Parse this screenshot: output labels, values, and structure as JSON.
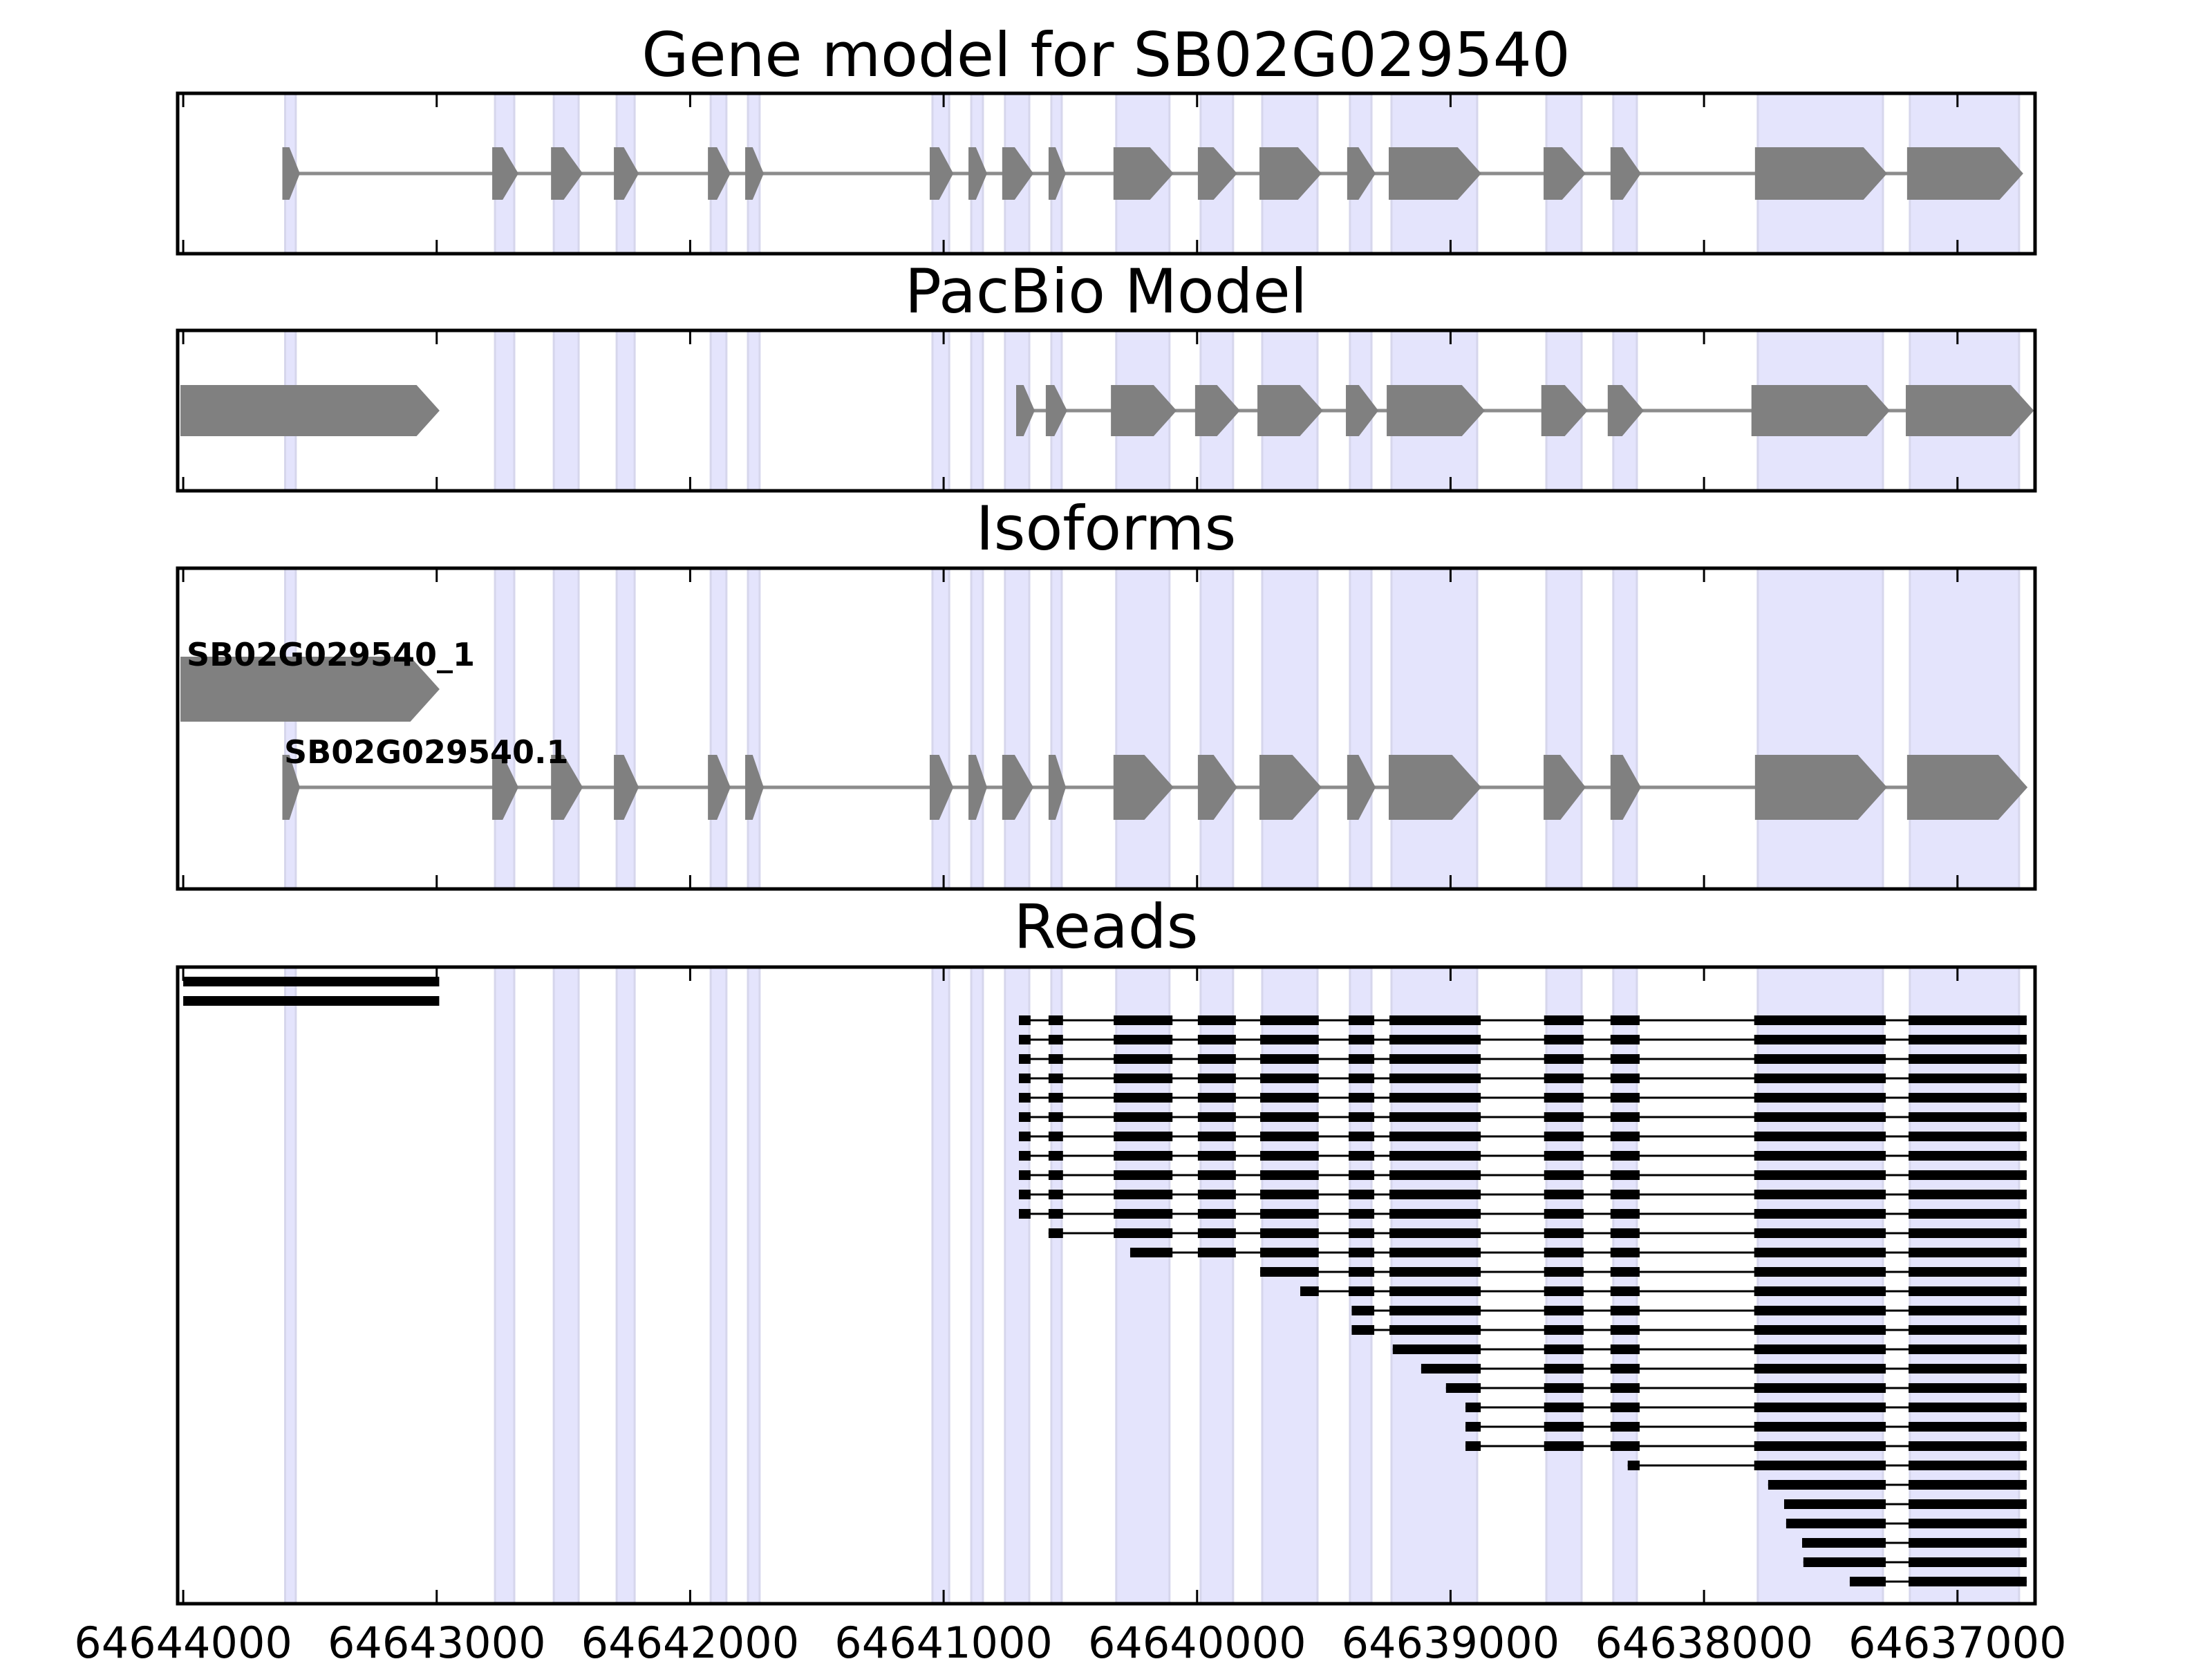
{
  "colors": {
    "band_fill": "#e4e4fc",
    "band_edge": "#d6d6ec",
    "exon_gray": "#808080",
    "intron_gray": "#8c8c8c",
    "read_black": "#000000",
    "frame": "#000000"
  },
  "chart_data": {
    "type": "gene-track",
    "x_axis": {
      "xlim": [
        64644022,
        64636694
      ],
      "reversed": true,
      "ticks": [
        64644000,
        64643000,
        64642000,
        64641000,
        64640000,
        64639000,
        64638000,
        64637000
      ],
      "tick_labels": [
        "64644000",
        "64643000",
        "64642000",
        "64641000",
        "64640000",
        "64639000",
        "64638000",
        "64637000"
      ]
    },
    "highlight_bands": [
      [
        64643598,
        64643556
      ],
      [
        64642770,
        64642694
      ],
      [
        64642538,
        64642440
      ],
      [
        64642290,
        64642219
      ],
      [
        64641919,
        64641857
      ],
      [
        64641772,
        64641726
      ],
      [
        64641044,
        64640978
      ],
      [
        64640891,
        64640845
      ],
      [
        64640758,
        64640662
      ],
      [
        64640575,
        64640534
      ],
      [
        64640319,
        64640109
      ],
      [
        64639986,
        64639858
      ],
      [
        64639743,
        64639525
      ],
      [
        64639397,
        64639312
      ],
      [
        64639233,
        64638895
      ],
      [
        64638622,
        64638483
      ],
      [
        64638358,
        64638265
      ],
      [
        64637788,
        64637294
      ],
      [
        64637188,
        64636757
      ]
    ],
    "panels": [
      {
        "id": "gene-model",
        "title": "Gene model for SB02G029540",
        "strand": "-",
        "models": [
          {
            "label": "",
            "exons": [
              [
                64643598,
                64643556
              ],
              [
                64642770,
                64642694
              ],
              [
                64642538,
                64642440
              ],
              [
                64642290,
                64642219
              ],
              [
                64641919,
                64641857
              ],
              [
                64641772,
                64641726
              ],
              [
                64641044,
                64640978
              ],
              [
                64640891,
                64640845
              ],
              [
                64640758,
                64640662
              ],
              [
                64640575,
                64640534
              ],
              [
                64640319,
                64640109
              ],
              [
                64639986,
                64639858
              ],
              [
                64639743,
                64639525
              ],
              [
                64639397,
                64639312
              ],
              [
                64639233,
                64638895
              ],
              [
                64638622,
                64638483
              ],
              [
                64638358,
                64638265
              ],
              [
                64637788,
                64637294
              ],
              [
                64637188,
                64636757
              ]
            ]
          }
        ]
      },
      {
        "id": "pacbio-model",
        "title": "PacBio Model",
        "strand": "-",
        "models": [
          {
            "label": "",
            "exons": [
              [
                64644000,
                64643005
              ]
            ]
          },
          {
            "label": "",
            "exons": [
              [
                64640703,
                64640657
              ],
              [
                64640586,
                64640529
              ],
              [
                64640329,
                64640097
              ],
              [
                64639997,
                64639847
              ],
              [
                64639751,
                64639520
              ],
              [
                64639402,
                64639301
              ],
              [
                64639241,
                64638881
              ],
              [
                64638631,
                64638475
              ],
              [
                64638369,
                64638254
              ],
              [
                64637802,
                64637283
              ],
              [
                64637193,
                64636715
              ]
            ]
          }
        ]
      },
      {
        "id": "isoforms",
        "title": "Isoforms",
        "strand": "-",
        "models": [
          {
            "label": "SB02G029540_1",
            "exons": [
              [
                64644000,
                64643005
              ]
            ]
          },
          {
            "label": "SB02G029540.1",
            "exons": [
              [
                64643598,
                64643556
              ],
              [
                64642770,
                64642694
              ],
              [
                64642538,
                64642440
              ],
              [
                64642290,
                64642219
              ],
              [
                64641919,
                64641857
              ],
              [
                64641772,
                64641726
              ],
              [
                64641044,
                64640978
              ],
              [
                64640891,
                64640845
              ],
              [
                64640758,
                64640662
              ],
              [
                64640575,
                64640534
              ],
              [
                64640319,
                64640109
              ],
              [
                64639986,
                64639858
              ],
              [
                64639743,
                64639525
              ],
              [
                64639397,
                64639312
              ],
              [
                64639233,
                64638895
              ],
              [
                64638622,
                64638483
              ],
              [
                64638358,
                64638265
              ],
              [
                64637788,
                64637294
              ],
              [
                64637188,
                64636740
              ]
            ]
          }
        ]
      },
      {
        "id": "reads",
        "title": "Reads",
        "read_exon_set": [
          [
            64640703,
            64640657
          ],
          [
            64640586,
            64640529
          ],
          [
            64640329,
            64640097
          ],
          [
            64639997,
            64639847
          ],
          [
            64639751,
            64639520
          ],
          [
            64639402,
            64639301
          ],
          [
            64639241,
            64638881
          ],
          [
            64638631,
            64638475
          ],
          [
            64638369,
            64638254
          ],
          [
            64637802,
            64637283
          ],
          [
            64637193,
            64636727
          ]
        ],
        "reads": [
          {
            "first": [
              64644000,
              64642990
            ],
            "from": 11
          },
          {
            "first": [
              64644000,
              64642990
            ],
            "from": 11
          },
          {
            "first": null,
            "from": 0
          },
          {
            "first": null,
            "from": 0
          },
          {
            "first": null,
            "from": 0
          },
          {
            "first": null,
            "from": 0
          },
          {
            "first": null,
            "from": 0
          },
          {
            "first": null,
            "from": 0
          },
          {
            "first": null,
            "from": 0
          },
          {
            "first": null,
            "from": 0
          },
          {
            "first": null,
            "from": 0
          },
          {
            "first": null,
            "from": 0
          },
          {
            "first": null,
            "from": 0
          },
          {
            "first": null,
            "from": 1
          },
          {
            "first": [
              64640264,
              64640097
            ],
            "from": 3
          },
          {
            "first": null,
            "from": 4
          },
          {
            "first": [
              64639593,
              64639520
            ],
            "from": 5
          },
          {
            "first": [
              64639390,
              64639301
            ],
            "from": 6
          },
          {
            "first": [
              64639390,
              64639301
            ],
            "from": 6
          },
          {
            "first": [
              64639228,
              64638881
            ],
            "from": 7
          },
          {
            "first": [
              64639116,
              64638881
            ],
            "from": 7
          },
          {
            "first": [
              64639018,
              64638881
            ],
            "from": 7
          },
          {
            "first": [
              64638941,
              64638881
            ],
            "from": 7
          },
          {
            "first": [
              64638941,
              64638881
            ],
            "from": 7
          },
          {
            "first": [
              64638941,
              64638881
            ],
            "from": 7
          },
          {
            "first": [
              64638301,
              64638254
            ],
            "from": 9
          },
          {
            "first": [
              64637747,
              64637283
            ],
            "from": 10
          },
          {
            "first": [
              64637684,
              64637283
            ],
            "from": 10
          },
          {
            "first": [
              64637676,
              64637283
            ],
            "from": 10
          },
          {
            "first": [
              64637613,
              64637283
            ],
            "from": 10
          },
          {
            "first": [
              64637608,
              64637283
            ],
            "from": 10
          },
          {
            "first": [
              64637425,
              64637283
            ],
            "from": 10
          }
        ]
      }
    ]
  }
}
